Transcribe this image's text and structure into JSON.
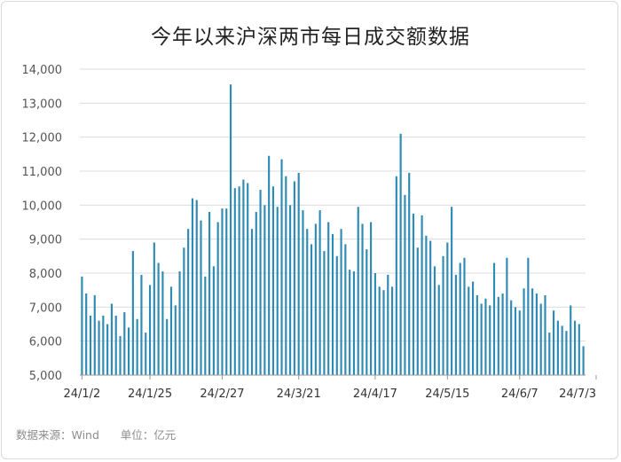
{
  "title": "今年以来沪深两市每日成交额数据",
  "source_label": "数据来源：Wind",
  "unit_label": "单位：亿元",
  "colors": {
    "bar": "#2e8bb5",
    "grid": "#dcdcdc",
    "axis": "#9a9a9a"
  },
  "chart_data": {
    "type": "bar",
    "ylim": [
      5000,
      14000
    ],
    "yticks": [
      "5,000",
      "6,000",
      "7,000",
      "8,000",
      "9,000",
      "10,000",
      "11,000",
      "12,000",
      "13,000",
      "14,000"
    ],
    "xtick_labels": [
      {
        "index": 0,
        "label": "24/1/2"
      },
      {
        "index": 16,
        "label": "24/1/25"
      },
      {
        "index": 33,
        "label": "24/2/27"
      },
      {
        "index": 51,
        "label": "24/3/21"
      },
      {
        "index": 69,
        "label": "24/4/17"
      },
      {
        "index": 86,
        "label": "24/5/15"
      },
      {
        "index": 103,
        "label": "24/6/7"
      },
      {
        "index": 121,
        "label": "24/7/3"
      }
    ],
    "grid": true,
    "values": [
      7900,
      7400,
      6750,
      7350,
      6600,
      6750,
      6500,
      7100,
      6750,
      6150,
      6850,
      6400,
      8650,
      6650,
      7950,
      6250,
      7650,
      8900,
      8300,
      8050,
      6650,
      7600,
      7050,
      8050,
      8750,
      9300,
      10200,
      10150,
      9550,
      7900,
      9800,
      8200,
      9500,
      9900,
      9900,
      13550,
      10500,
      10550,
      10750,
      10650,
      9300,
      9800,
      10450,
      10000,
      11450,
      10550,
      9950,
      11350,
      10850,
      10000,
      10700,
      10950,
      9850,
      9300,
      8850,
      9450,
      9850,
      8650,
      9500,
      9150,
      8500,
      9300,
      8850,
      8100,
      8050,
      9950,
      9450,
      8700,
      9500,
      8000,
      7600,
      7500,
      7950,
      7600,
      10850,
      12100,
      10300,
      10950,
      9750,
      8750,
      9700,
      9100,
      8950,
      8200,
      7650,
      8500,
      8900,
      9950,
      7950,
      8300,
      8450,
      7600,
      7750,
      7350,
      7100,
      7250,
      7050,
      8300,
      7300,
      7400,
      8450,
      7200,
      7000,
      6900,
      7550,
      8450,
      7550,
      7400,
      7100,
      7350,
      6250,
      6900,
      6600,
      6450,
      6300,
      7050,
      6600,
      6500,
      5850
    ]
  }
}
